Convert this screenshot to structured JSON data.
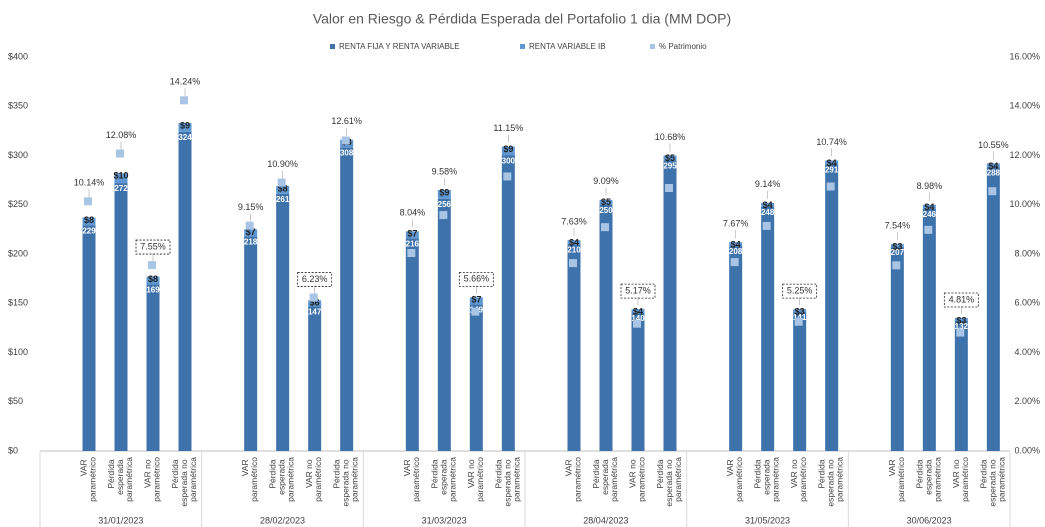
{
  "chart_data": {
    "type": "bar",
    "stacked": true,
    "title": "Valor en Riesgo  & Pérdida Esperada del Portafolio 1 dia (MM DOP)",
    "groups": [
      "31/01/2023",
      "28/02/2023",
      "31/03/2023",
      "28/04/2023",
      "31/05/2023",
      "30/06/2023"
    ],
    "categories": [
      "VAR paramétrico",
      "Pérdida esperada paramétrica",
      "VAR no paramétrico",
      "Pérdida esperada no paramétrica",
      "VAR paramétrico",
      "Pérdida esperada paramétrica",
      "VAR no paramétrico",
      "Pérdida esperada no paramétrica",
      "VAR paramétrico",
      "Pérdida esperada paramétrica",
      "VAR no paramétrico",
      "Pérdida esperada no paramétrica",
      "VAR paramétrico",
      "Pérdida esperada paramétrica",
      "VAR no paramétrico",
      "Pérdida esperada no paramétrica",
      "VAR paramétrico",
      "Pérdida esperada paramétrica",
      "VAR no paramétrico",
      "Pérdida esperada no paramétrica",
      "VAR paramétrico",
      "Pérdida esperada paramétrica",
      "VAR no paramétrico",
      "Pérdida esperada no paramétrica"
    ],
    "series": [
      {
        "name": "RENTA FIJA Y RENTA VARIABLE",
        "color": "#3e72ab",
        "values": [
          229,
          272,
          169,
          324,
          218,
          261,
          147,
          308,
          216,
          256,
          149,
          300,
          210,
          250,
          140,
          295,
          208,
          248,
          141,
          291,
          207,
          246,
          132,
          288
        ]
      },
      {
        "name": "RENTA VARIABLE IB",
        "color": "#5f97d2",
        "values": [
          8,
          10,
          8,
          9,
          7,
          8,
          6,
          8,
          7,
          9,
          7,
          9,
          4,
          5,
          4,
          5,
          4,
          4,
          3,
          4,
          3,
          4,
          3,
          4
        ],
        "value_labels": [
          "$8",
          "$10",
          "$8",
          "$9",
          "$7",
          "$8",
          "$6",
          "$8",
          "$7",
          "$9",
          "$7",
          "$9",
          "$4",
          "$5",
          "$4",
          "$5",
          "$4",
          "$4",
          "$3",
          "$4",
          "$3",
          "$4",
          "$3",
          "$4"
        ]
      },
      {
        "name": "% Patrimonio",
        "type": "scatter",
        "axis": "y2",
        "color": "#a9c5e6",
        "values": [
          10.14,
          12.08,
          7.55,
          14.24,
          9.15,
          10.9,
          6.23,
          12.61,
          8.04,
          9.58,
          5.66,
          11.15,
          7.63,
          9.09,
          5.17,
          10.68,
          7.67,
          9.14,
          5.25,
          10.74,
          7.54,
          8.98,
          4.81,
          10.55
        ],
        "value_labels": [
          "10.14%",
          "12.08%",
          "7.55%",
          "14.24%",
          "9.15%",
          "10.90%",
          "6.23%",
          "12.61%",
          "8.04%",
          "9.58%",
          "5.66%",
          "11.15%",
          "7.63%",
          "9.09%",
          "5.17%",
          "10.68%",
          "7.67%",
          "9.14%",
          "5.25%",
          "10.74%",
          "7.54%",
          "8.98%",
          "4.81%",
          "10.55%"
        ]
      }
    ],
    "ylim": [
      0,
      400
    ],
    "yticks": [
      {
        "value": 0,
        "label": "$0"
      },
      {
        "value": 50,
        "label": "$50"
      },
      {
        "value": 100,
        "label": "$100"
      },
      {
        "value": 150,
        "label": "$150"
      },
      {
        "value": 200,
        "label": "$200"
      },
      {
        "value": 250,
        "label": "$250"
      },
      {
        "value": 300,
        "label": "$300"
      },
      {
        "value": 350,
        "label": "$350"
      },
      {
        "value": 400,
        "label": "$400"
      }
    ],
    "y2lim": [
      0,
      16
    ],
    "y2ticks": [
      {
        "value": 0,
        "label": "0.00%"
      },
      {
        "value": 2,
        "label": "2.00%"
      },
      {
        "value": 4,
        "label": "4.00%"
      },
      {
        "value": 6,
        "label": "6.00%"
      },
      {
        "value": 8,
        "label": "8.00%"
      },
      {
        "value": 10,
        "label": "10.00%"
      },
      {
        "value": 12,
        "label": "12.00%"
      },
      {
        "value": 14,
        "label": "14.00%"
      },
      {
        "value": 16,
        "label": "16.00%"
      }
    ],
    "grid": false,
    "legend": "top"
  }
}
